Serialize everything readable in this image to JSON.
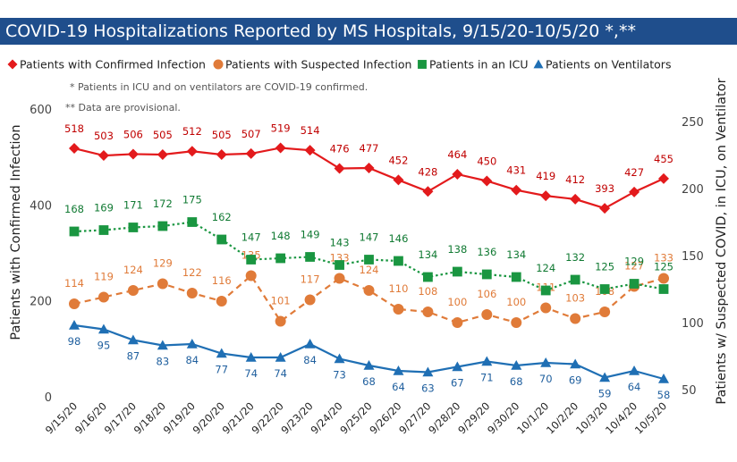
{
  "title": "COVID-19 Hospitalizations Reported by MS Hospitals, 9/15/20-10/5/20 *,**",
  "notes": [
    "* Patients in ICU and on ventilators are COVID-19 confirmed.",
    "** Data are provisional."
  ],
  "colors": {
    "title_bg": "#1f4e8c",
    "confirmed": "#e31a1c",
    "suspected": "#e07b39",
    "icu": "#1a9641",
    "ventilators": "#1f6fb4"
  },
  "chart_data": {
    "type": "line",
    "categories": [
      "9/15/20",
      "9/16/20",
      "9/17/20",
      "9/18/20",
      "9/19/20",
      "9/20/20",
      "9/21/20",
      "9/22/20",
      "9/23/20",
      "9/24/20",
      "9/25/20",
      "9/26/20",
      "9/27/20",
      "9/28/20",
      "9/29/20",
      "9/30/20",
      "10/1/20",
      "10/2/20",
      "10/3/20",
      "10/4/20",
      "10/5/20"
    ],
    "ylabel": "Patients with Confirmed Infection",
    "y2label": "Patients w/ Suspected COVID, in ICU, on Ventilator",
    "ylim": [
      0,
      600
    ],
    "y2lim": [
      50,
      260
    ],
    "yticks": [
      0,
      200,
      400,
      600
    ],
    "y2ticks": [
      50,
      100,
      150,
      200,
      250
    ],
    "legend_position": "top",
    "grid": false,
    "series": [
      {
        "name": "Patients with Confirmed Infection",
        "axis": "left",
        "marker": "diamond",
        "line": "solid",
        "values": [
          518,
          503,
          506,
          505,
          512,
          505,
          507,
          519,
          514,
          476,
          477,
          452,
          428,
          464,
          450,
          431,
          419,
          412,
          393,
          427,
          455
        ]
      },
      {
        "name": "Patients with Suspected Infection",
        "axis": "right",
        "marker": "circle",
        "line": "dashed",
        "values": [
          114,
          119,
          124,
          129,
          122,
          116,
          135,
          101,
          117,
          133,
          124,
          110,
          108,
          100,
          106,
          100,
          111,
          103,
          108,
          127,
          133
        ]
      },
      {
        "name": "Patients in an ICU",
        "axis": "right",
        "marker": "square",
        "line": "dotted",
        "values": [
          168,
          169,
          171,
          172,
          175,
          162,
          147,
          148,
          149,
          143,
          147,
          146,
          134,
          138,
          136,
          134,
          124,
          132,
          125,
          129,
          125
        ]
      },
      {
        "name": "Patients on Ventilators",
        "axis": "right",
        "marker": "triangle",
        "line": "solid",
        "values": [
          98,
          95,
          87,
          83,
          84,
          77,
          74,
          74,
          84,
          73,
          68,
          64,
          63,
          67,
          71,
          68,
          70,
          69,
          59,
          64,
          58
        ]
      }
    ]
  }
}
